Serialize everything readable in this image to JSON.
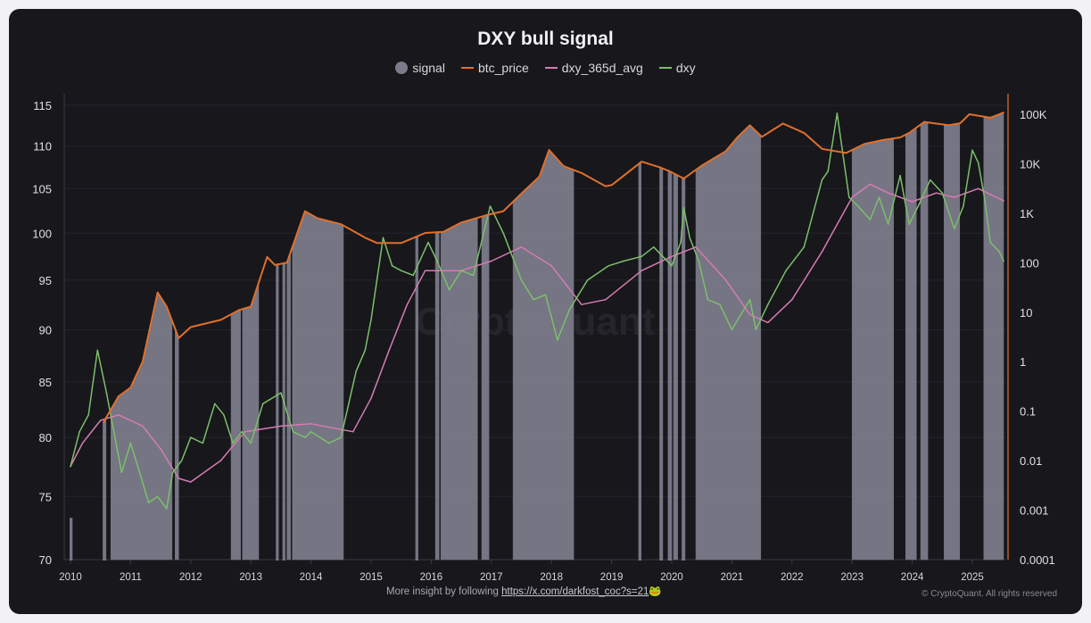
{
  "chart_data": {
    "type": "line",
    "title": "DXY bull signal",
    "watermark": "CryptoQuant",
    "legend": [
      "signal",
      "btc_price",
      "dxy_365d_avg",
      "dxy"
    ],
    "legend_placement": "top-center",
    "colors": {
      "signal": "#7b7b8a",
      "btc_price": "#e0702a",
      "dxy_365d_avg": "#d77bb2",
      "dxy": "#7dbf6a",
      "axis_right": "#c0602a",
      "background": "#17171c"
    },
    "x_ticks": [
      "2010",
      "2011",
      "2012",
      "2013",
      "2014",
      "2015",
      "2016",
      "2017",
      "2018",
      "2019",
      "2020",
      "2021",
      "2022",
      "2023",
      "2024",
      "2025"
    ],
    "xlim": [
      2010,
      2025.65
    ],
    "y_left": {
      "scale": "log",
      "ylim": [
        70,
        115
      ],
      "ticks": [
        "70",
        "75",
        "80",
        "85",
        "90",
        "95",
        "100",
        "105",
        "110",
        "115"
      ]
    },
    "y_right": {
      "scale": "log",
      "ylim": [
        0.0001,
        100000
      ],
      "ticks": [
        "0.0001",
        "0.001",
        "0.01",
        "0.1",
        "1",
        "10",
        "100",
        "1K",
        "10K",
        "100K"
      ]
    },
    "grid": true,
    "signal_periods": [
      [
        2010.0,
        2010.02
      ],
      [
        2010.55,
        2010.58
      ],
      [
        2010.67,
        2011.69
      ],
      [
        2011.74,
        2011.8
      ],
      [
        2012.67,
        2012.83
      ],
      [
        2012.86,
        2013.13
      ],
      [
        2013.43,
        2013.45
      ],
      [
        2013.54,
        2013.56
      ],
      [
        2013.6,
        2013.66
      ],
      [
        2013.69,
        2014.54
      ],
      [
        2015.75,
        2015.77
      ],
      [
        2016.07,
        2016.13
      ],
      [
        2016.16,
        2016.77
      ],
      [
        2016.84,
        2016.96
      ],
      [
        2017.36,
        2018.37
      ],
      [
        2019.46,
        2019.48
      ],
      [
        2019.81,
        2019.84
      ],
      [
        2019.95,
        2019.99
      ],
      [
        2020.03,
        2020.1
      ],
      [
        2020.18,
        2020.21
      ],
      [
        2020.4,
        2021.48
      ],
      [
        2023.0,
        2023.69
      ],
      [
        2023.89,
        2024.07
      ],
      [
        2024.14,
        2024.26
      ],
      [
        2024.53,
        2024.79
      ],
      [
        2025.19,
        2025.52
      ]
    ],
    "series": [
      {
        "name": "btc_price",
        "axis": "right",
        "x": [
          2010.55,
          2010.8,
          2011.0,
          2011.2,
          2011.45,
          2011.6,
          2011.8,
          2012.0,
          2012.5,
          2012.8,
          2013.0,
          2013.27,
          2013.4,
          2013.6,
          2013.9,
          2014.1,
          2014.5,
          2014.9,
          2015.1,
          2015.5,
          2015.9,
          2016.2,
          2016.5,
          2016.9,
          2017.2,
          2017.5,
          2017.8,
          2017.96,
          2018.2,
          2018.5,
          2018.9,
          2019.0,
          2019.5,
          2019.8,
          2019.95,
          2020.2,
          2020.5,
          2020.9,
          2021.1,
          2021.3,
          2021.5,
          2021.85,
          2022.2,
          2022.5,
          2022.9,
          2023.2,
          2023.5,
          2023.8,
          2023.95,
          2024.2,
          2024.6,
          2024.8,
          2024.95,
          2025.3,
          2025.52
        ],
        "values": [
          0.06,
          0.2,
          0.3,
          1,
          25,
          13,
          3,
          5,
          7,
          11,
          13,
          130,
          90,
          100,
          1100,
          800,
          600,
          320,
          250,
          250,
          400,
          420,
          650,
          900,
          1100,
          2500,
          5500,
          19000,
          9000,
          6500,
          3500,
          3700,
          11000,
          8500,
          7200,
          5000,
          9200,
          18000,
          35000,
          60000,
          35000,
          65000,
          42000,
          20000,
          16500,
          25000,
          30000,
          34000,
          42000,
          70000,
          60000,
          66000,
          100000,
          85000,
          108000
        ]
      },
      {
        "name": "dxy_365d_avg",
        "axis": "left",
        "x": [
          2010.0,
          2010.2,
          2010.5,
          2010.8,
          2011.2,
          2011.5,
          2011.8,
          2012.0,
          2012.5,
          2012.9,
          2013.5,
          2014.0,
          2014.5,
          2014.7,
          2015.0,
          2015.3,
          2015.6,
          2015.9,
          2016.5,
          2017.0,
          2017.5,
          2018.0,
          2018.5,
          2018.9,
          2019.5,
          2020.0,
          2020.4,
          2020.9,
          2021.3,
          2021.6,
          2022.0,
          2022.5,
          2023.0,
          2023.3,
          2023.6,
          2024.0,
          2024.4,
          2024.7,
          2025.1,
          2025.52
        ],
        "values": [
          77.5,
          79.5,
          81.5,
          82,
          81,
          79,
          76.5,
          76.2,
          78,
          80.5,
          81,
          81.2,
          80.7,
          80.5,
          83.5,
          88,
          92.5,
          96,
          96,
          97,
          98.5,
          96.5,
          92.5,
          93,
          96,
          97.5,
          98.5,
          95,
          91.5,
          90.7,
          93,
          98,
          104,
          105.5,
          104.5,
          103.5,
          104.5,
          104,
          105,
          103.6
        ]
      },
      {
        "name": "dxy",
        "axis": "left",
        "x": [
          2010.0,
          2010.15,
          2010.3,
          2010.45,
          2010.6,
          2010.85,
          2011.0,
          2011.15,
          2011.3,
          2011.45,
          2011.6,
          2011.7,
          2011.85,
          2012.0,
          2012.2,
          2012.4,
          2012.55,
          2012.7,
          2012.85,
          2013.0,
          2013.2,
          2013.5,
          2013.7,
          2013.9,
          2014.0,
          2014.3,
          2014.5,
          2014.75,
          2014.9,
          2015.0,
          2015.2,
          2015.35,
          2015.5,
          2015.7,
          2015.95,
          2016.1,
          2016.3,
          2016.5,
          2016.7,
          2016.98,
          2017.2,
          2017.5,
          2017.7,
          2017.9,
          2018.1,
          2018.3,
          2018.6,
          2018.95,
          2019.2,
          2019.5,
          2019.7,
          2020.0,
          2020.15,
          2020.2,
          2020.3,
          2020.45,
          2020.6,
          2020.8,
          2021.0,
          2021.3,
          2021.4,
          2021.6,
          2021.9,
          2022.2,
          2022.5,
          2022.6,
          2022.75,
          2022.95,
          2023.1,
          2023.3,
          2023.45,
          2023.6,
          2023.8,
          2023.95,
          2024.1,
          2024.3,
          2024.5,
          2024.7,
          2024.85,
          2025.0,
          2025.1,
          2025.2,
          2025.3,
          2025.45,
          2025.52
        ],
        "values": [
          77.5,
          80.5,
          82,
          88,
          84,
          77,
          79.5,
          77,
          74.5,
          75,
          74,
          77,
          78,
          80,
          79.5,
          83,
          82,
          79.5,
          80.5,
          79.5,
          83,
          84,
          80.5,
          80,
          80.5,
          79.5,
          80,
          86,
          88,
          91,
          99.5,
          96.5,
          96,
          95.5,
          99,
          97,
          94,
          96,
          95.5,
          103,
          100,
          95,
          93,
          93.5,
          89,
          92,
          95,
          96.5,
          97,
          97.5,
          98.5,
          96.5,
          99,
          102.8,
          99.5,
          97,
          93,
          92.5,
          90,
          93,
          90,
          92.5,
          96,
          98.5,
          106,
          107,
          114,
          104,
          103,
          101.5,
          104,
          101,
          106.5,
          101,
          103,
          106,
          104.5,
          100.5,
          103,
          109.5,
          108,
          104,
          99,
          98,
          97
        ]
      }
    ]
  },
  "footer": {
    "text": "More insight by following",
    "link": "https://x.com/darkfost_coc?s=21",
    "emoji": "🐸",
    "copyright": "© CryptoQuant. All rights reserved"
  }
}
